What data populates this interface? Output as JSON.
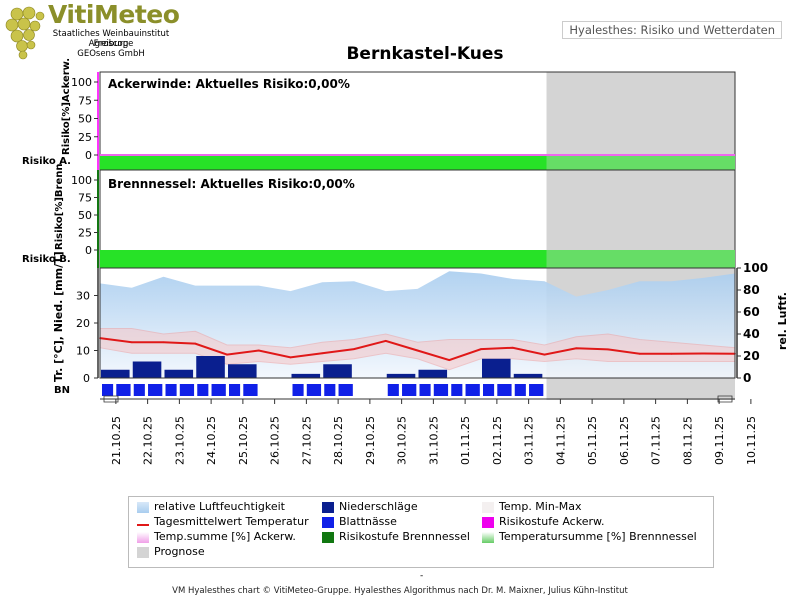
{
  "header": {
    "logo_title": "VitiMeteo",
    "logo_lines": [
      "Staatliches Weinbauinstitut Freiburg",
      "Agroscope",
      "GEOsens GmbH"
    ],
    "top_right_label": "Hyalesthes: Risiko und Wetterdaten"
  },
  "title": "Bernkastel-Kues",
  "panels": {
    "ackerwinde": {
      "label": "Ackerwinde: Aktuelles Risiko:0,00%",
      "ylabel": "Risiko[%]Ackerw.",
      "band_label": "Risiko A."
    },
    "brennnessel": {
      "label": "Brennnessel: Aktuelles Risiko:0,00%",
      "ylabel": "Risiko[%]Brenn.",
      "band_label": "Risiko B."
    },
    "weather": {
      "ylabel_left": "Tr. [°C], Nied. [mm/T]",
      "ylabel_right": "rel. Luftf.",
      "bn_label": "BN"
    }
  },
  "colors": {
    "humidity": "#a9cdef",
    "precip": "#0a1f8f",
    "temp_line": "#e01818",
    "temp_band": "#f7c6c6",
    "leaf_wet": "#1020e8",
    "risk_green": "#27e227",
    "forecast_grey": "#d4d4d4",
    "ackerw_axis": "#ff33ff",
    "brenn_axis": "#117711"
  },
  "chart_data": {
    "type": "line",
    "x": [
      "21.10.25",
      "22.10.25",
      "23.10.25",
      "24.10.25",
      "25.10.25",
      "26.10.25",
      "27.10.25",
      "28.10.25",
      "29.10.25",
      "30.10.25",
      "31.10.25",
      "01.11.25",
      "02.11.25",
      "03.11.25",
      "04.11.25",
      "05.11.25",
      "06.11.25",
      "07.11.25",
      "08.11.25",
      "09.11.25",
      "10.11.25"
    ],
    "forecast_from": "04.11.25",
    "risk_ackerwinde": {
      "ylim": [
        0,
        100
      ],
      "yticks": [
        0,
        25,
        50,
        75,
        100
      ],
      "values": [
        0,
        0,
        0,
        0,
        0,
        0,
        0,
        0,
        0,
        0,
        0,
        0,
        0,
        0,
        0,
        0,
        0,
        0,
        0,
        0,
        0
      ]
    },
    "risk_brennnessel": {
      "ylim": [
        0,
        100
      ],
      "yticks": [
        0,
        25,
        50,
        75,
        100
      ],
      "values": [
        0,
        0,
        0,
        0,
        0,
        0,
        0,
        0,
        0,
        0,
        0,
        0,
        0,
        0,
        0,
        0,
        0,
        0,
        0,
        0,
        0
      ]
    },
    "weather": {
      "ylim_left": [
        0,
        40
      ],
      "yticks_left": [
        0,
        10,
        20,
        30
      ],
      "ylim_right": [
        0,
        100
      ],
      "yticks_right": [
        0,
        20,
        40,
        60,
        80,
        100
      ],
      "series": [
        {
          "name": "relative Luftfeuchtigkeit",
          "axis": "right",
          "values": [
            86,
            82,
            92,
            84,
            84,
            84,
            79,
            87,
            88,
            79,
            81,
            97,
            95,
            90,
            88,
            74,
            80,
            88,
            88,
            91,
            95
          ]
        },
        {
          "name": "Tagesmittelwert Temperatur",
          "axis": "left",
          "values": [
            14.5,
            13,
            13,
            12.5,
            8.5,
            10,
            7.5,
            9,
            10.5,
            13.5,
            10,
            6.5,
            10.5,
            11,
            8.5,
            10.8,
            10.4,
            8.8,
            8.8,
            8.9,
            8.8
          ]
        },
        {
          "name": "Temp. Min-Max",
          "axis": "left",
          "min": [
            11,
            9,
            9,
            9,
            5,
            6,
            5,
            6,
            7,
            9,
            7,
            3,
            7,
            7,
            6,
            7,
            6,
            6,
            6,
            6,
            6
          ],
          "max": [
            18,
            18,
            16,
            17,
            12,
            12,
            11,
            13,
            14,
            16,
            13,
            14,
            14,
            14,
            12,
            15,
            16,
            14,
            13,
            12,
            11
          ]
        },
        {
          "name": "Niederschläge",
          "axis": "left",
          "values": [
            3,
            6,
            3,
            8,
            5,
            0,
            1.5,
            5,
            0,
            1.5,
            3,
            0,
            7,
            1.5,
            0,
            0,
            0,
            0,
            0,
            0,
            0
          ]
        }
      ],
      "leaf_wetness": [
        1,
        1,
        1,
        1,
        1,
        0,
        1,
        1,
        0,
        1,
        1,
        1,
        1,
        1,
        0,
        0,
        0,
        0,
        0,
        0,
        0
      ]
    }
  },
  "legend": [
    {
      "label": "relative Luftfeuchtigkeit",
      "swatch": "humidity"
    },
    {
      "label": "Niederschläge",
      "swatch": "precip"
    },
    {
      "label": "Temp. Min-Max",
      "swatch": "temp_band"
    },
    {
      "label": "Tagesmittelwert Temperatur",
      "swatch": "temp_line"
    },
    {
      "label": "Blattnässe",
      "swatch": "leaf_wet"
    },
    {
      "label": "Risikostufe Ackerw.",
      "swatch": "ackerw_axis"
    },
    {
      "label": "Temp.summe [%] Ackerw.",
      "swatch": "temp_band"
    },
    {
      "label": "Risikostufe Brennnessel",
      "swatch": "brenn_axis"
    },
    {
      "label": "Temperatursumme [%] Brennnessel",
      "swatch": "risk_green"
    },
    {
      "label": "Prognose",
      "swatch": "forecast_grey"
    }
  ],
  "footer": {
    "dash": "-",
    "text": "VM Hyalesthes chart © VitiMeteo-Gruppe. Hyalesthes Algorithmus nach Dr. M. Maixner, Julius Kühn-Institut"
  }
}
